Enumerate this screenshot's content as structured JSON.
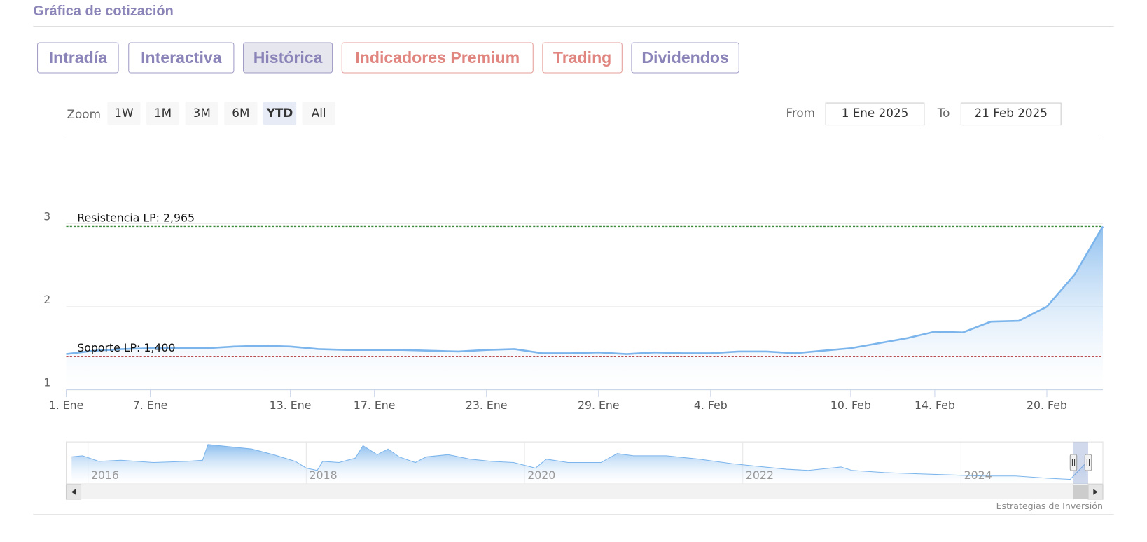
{
  "header_title": "Gráfica de cotización",
  "tabs": [
    {
      "label": "Intradía",
      "color": "#8a84b8",
      "active": false
    },
    {
      "label": "Interactiva",
      "color": "#8a84b8",
      "active": false
    },
    {
      "label": "Histórica",
      "color": "#8a84b8",
      "active": true
    },
    {
      "label": "Indicadores Premium",
      "color": "#e0857f",
      "active": false
    },
    {
      "label": "Trading",
      "color": "#e0857f",
      "active": false
    },
    {
      "label": "Dividendos",
      "color": "#8a84b8",
      "active": false
    }
  ],
  "range_selector": {
    "zoom_label": "Zoom",
    "buttons": [
      {
        "label": "1W",
        "active": false
      },
      {
        "label": "1M",
        "active": false
      },
      {
        "label": "3M",
        "active": false
      },
      {
        "label": "6M",
        "active": false
      },
      {
        "label": "YTD",
        "active": true
      },
      {
        "label": "All",
        "active": false
      }
    ],
    "from_label": "From",
    "from_value": "1 Ene 2025",
    "to_label": "To",
    "to_value": "21 Feb 2025"
  },
  "credit": "Estrategias de Inversión",
  "chart_data": {
    "type": "area",
    "color": "#7cb5ec",
    "categories": [
      "1. Ene",
      null,
      null,
      "7. Ene",
      null,
      null,
      null,
      null,
      "13. Ene",
      null,
      null,
      "17. Ene",
      null,
      null,
      null,
      "23. Ene",
      null,
      null,
      null,
      "29. Ene",
      null,
      null,
      null,
      "4. Feb",
      null,
      null,
      null,
      null,
      "10. Feb",
      null,
      null,
      "14. Feb",
      null,
      null,
      null,
      "20. Feb",
      null,
      null
    ],
    "values": [
      1.43,
      1.47,
      1.49,
      1.5,
      1.5,
      1.5,
      1.52,
      1.53,
      1.52,
      1.49,
      1.48,
      1.48,
      1.48,
      1.47,
      1.46,
      1.48,
      1.49,
      1.44,
      1.44,
      1.45,
      1.43,
      1.45,
      1.44,
      1.44,
      1.46,
      1.46,
      1.44,
      1.47,
      1.5,
      1.56,
      1.62,
      1.7,
      1.69,
      1.82,
      1.83,
      2.0,
      2.39,
      2.965
    ],
    "ylim": [
      1,
      4
    ],
    "yticks": [
      1,
      2,
      3
    ],
    "grid": true,
    "plot_lines": [
      {
        "label": "Resistencia LP: 2,965",
        "value": 2.965,
        "color": "#3d8a3d"
      },
      {
        "label": "Soporte LP: 1,400",
        "value": 1.4,
        "color": "#a31515"
      }
    ],
    "navigator": {
      "xlim": [
        2015.8,
        2025.3
      ],
      "xticks": [
        2016,
        2018,
        2020,
        2022,
        2024
      ],
      "ylim": [
        1,
        4.6
      ],
      "x": [
        2015.85,
        2015.95,
        2016.1,
        2016.3,
        2016.6,
        2016.9,
        2017.05,
        2017.1,
        2017.3,
        2017.5,
        2017.7,
        2017.9,
        2018.0,
        2018.1,
        2018.15,
        2018.3,
        2018.45,
        2018.52,
        2018.65,
        2018.75,
        2018.85,
        2019.0,
        2019.1,
        2019.3,
        2019.5,
        2019.7,
        2019.9,
        2020.1,
        2020.2,
        2020.4,
        2020.7,
        2020.85,
        2021.0,
        2021.3,
        2021.6,
        2021.9,
        2022.1,
        2022.4,
        2022.6,
        2022.9,
        2023.0,
        2023.3,
        2023.6,
        2023.9,
        2024.2,
        2024.5,
        2024.8,
        2025.0,
        2025.15
      ],
      "values": [
        3.4,
        3.5,
        3.0,
        3.1,
        2.9,
        3.0,
        3.1,
        4.5,
        4.3,
        4.1,
        3.6,
        3.0,
        2.4,
        2.2,
        3.0,
        2.9,
        3.3,
        4.4,
        3.6,
        4.1,
        3.4,
        2.9,
        3.4,
        3.6,
        3.2,
        3.0,
        2.9,
        2.4,
        3.2,
        2.9,
        2.9,
        3.7,
        3.5,
        3.5,
        3.2,
        2.8,
        2.6,
        2.3,
        2.2,
        2.5,
        2.2,
        2.0,
        1.9,
        1.8,
        1.7,
        1.7,
        1.5,
        1.4,
        2.9
      ]
    }
  }
}
